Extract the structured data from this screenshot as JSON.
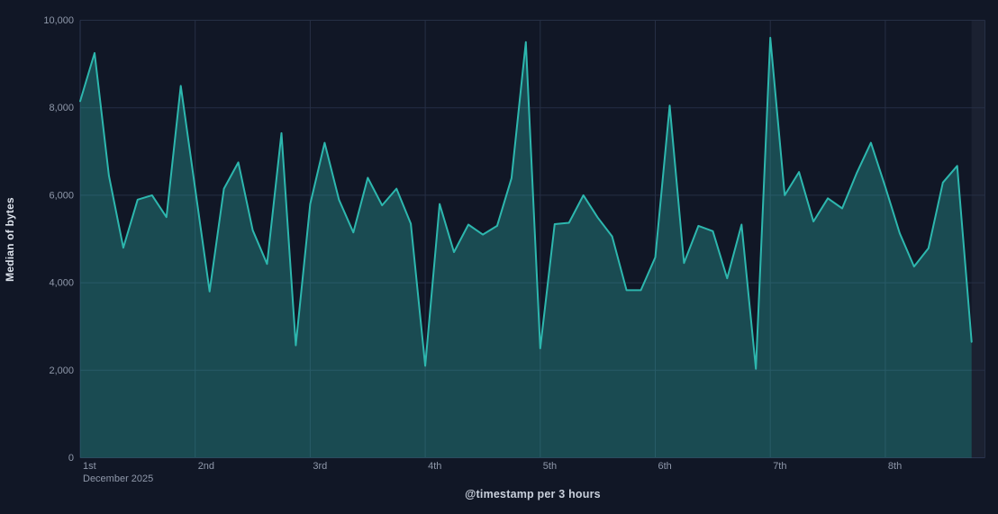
{
  "chart_data": {
    "type": "area",
    "title": "",
    "ylabel": "Median of bytes",
    "xlabel": "@timestamp per 3 hours",
    "ylim": [
      0,
      10000
    ],
    "grid": true,
    "legend": "none",
    "interval_per_bucket": "3 hours",
    "y_ticks": [
      {
        "value": 0,
        "label": "0"
      },
      {
        "value": 2000,
        "label": "2,000"
      },
      {
        "value": 4000,
        "label": "4,000"
      },
      {
        "value": 6000,
        "label": "6,000"
      },
      {
        "value": 8000,
        "label": "8,000"
      },
      {
        "value": 10000,
        "label": "10,000"
      }
    ],
    "x_ticks": [
      {
        "label": "1st",
        "sub": "December 2025"
      },
      {
        "label": "2nd"
      },
      {
        "label": "3rd"
      },
      {
        "label": "4th"
      },
      {
        "label": "5th"
      },
      {
        "label": "6th"
      },
      {
        "label": "7th"
      },
      {
        "label": "8th"
      }
    ],
    "x": [
      "Dec 1 00:00",
      "Dec 1 03:00",
      "Dec 1 06:00",
      "Dec 1 09:00",
      "Dec 1 12:00",
      "Dec 1 15:00",
      "Dec 1 18:00",
      "Dec 1 21:00",
      "Dec 2 00:00",
      "Dec 2 03:00",
      "Dec 2 06:00",
      "Dec 2 09:00",
      "Dec 2 12:00",
      "Dec 2 15:00",
      "Dec 2 18:00",
      "Dec 2 21:00",
      "Dec 3 00:00",
      "Dec 3 03:00",
      "Dec 3 06:00",
      "Dec 3 09:00",
      "Dec 3 12:00",
      "Dec 3 15:00",
      "Dec 3 18:00",
      "Dec 3 21:00",
      "Dec 4 00:00",
      "Dec 4 03:00",
      "Dec 4 06:00",
      "Dec 4 09:00",
      "Dec 4 12:00",
      "Dec 4 15:00",
      "Dec 4 18:00",
      "Dec 4 21:00",
      "Dec 5 00:00",
      "Dec 5 03:00",
      "Dec 5 06:00",
      "Dec 5 09:00",
      "Dec 5 12:00",
      "Dec 5 15:00",
      "Dec 5 18:00",
      "Dec 5 21:00",
      "Dec 6 00:00",
      "Dec 6 03:00",
      "Dec 6 06:00",
      "Dec 6 09:00",
      "Dec 6 12:00",
      "Dec 6 15:00",
      "Dec 6 18:00",
      "Dec 6 21:00",
      "Dec 7 00:00",
      "Dec 7 03:00",
      "Dec 7 06:00",
      "Dec 7 09:00",
      "Dec 7 12:00",
      "Dec 7 15:00",
      "Dec 7 18:00",
      "Dec 7 21:00",
      "Dec 8 00:00",
      "Dec 8 03:00",
      "Dec 8 06:00",
      "Dec 8 09:00",
      "Dec 8 12:00",
      "Dec 8 15:00",
      "Dec 8 18:00"
    ],
    "values": [
      8150,
      9250,
      6450,
      4800,
      5900,
      6000,
      5500,
      8500,
      6150,
      3800,
      6150,
      6750,
      5200,
      4430,
      7420,
      2570,
      5800,
      7200,
      5900,
      5150,
      6400,
      5770,
      6150,
      5350,
      2100,
      5800,
      4700,
      5330,
      5100,
      5300,
      6390,
      9500,
      2500,
      5340,
      5370,
      6000,
      5490,
      5060,
      3830,
      3830,
      4580,
      8050,
      4450,
      5300,
      5180,
      4100,
      5330,
      2030,
      9600,
      6000,
      6530,
      5400,
      5930,
      5700,
      6500,
      7200,
      6190,
      5130,
      4370,
      4790,
      6290,
      6670,
      2650
    ],
    "colors": {
      "background": "#111726",
      "gridline": "#262f45",
      "axis_line": "#2b3550",
      "series_line": "#2db7ae",
      "series_fill_opacity": 0.33,
      "tick_label": "#8f98aa",
      "axis_title": "#d6dce6",
      "partial_bucket_band": "rgba(195,213,255,0.055)"
    }
  }
}
